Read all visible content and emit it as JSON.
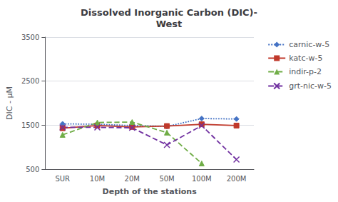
{
  "chart_data": {
    "type": "line",
    "title": "Dissolved Inorganic Carbon (DIC)-\nWest",
    "x_label": "Depth of the stations",
    "y_label": "DIC - μM",
    "categories": [
      "SUR",
      "10M",
      "20M",
      "50M",
      "100M",
      "200M"
    ],
    "series": [
      {
        "name": "carnic-w-5",
        "color": "#4472C4",
        "marker": "diamond",
        "line_style": "dotted",
        "values": [
          1530,
          1520,
          1490,
          1470,
          1650,
          1640
        ]
      },
      {
        "name": "katc-w-5",
        "color": "#C0392B",
        "marker": "square",
        "line_style": "solid",
        "values": [
          1430,
          1490,
          1460,
          1480,
          1520,
          1490
        ]
      },
      {
        "name": "indir-p-2",
        "color": "#70AD47",
        "marker": "triangle",
        "line_style": "dashed",
        "values": [
          1280,
          1560,
          1570,
          1330,
          630,
          null
        ]
      },
      {
        "name": "grt-nic-w-5",
        "color": "#7030A0",
        "marker": "x",
        "line_style": "dashed",
        "values": [
          1450,
          1450,
          1440,
          1050,
          1490,
          720
        ]
      }
    ],
    "ylim": [
      500,
      3500
    ],
    "yticks": [
      500,
      1500,
      2500,
      3500
    ],
    "grid": true,
    "legend": "right"
  }
}
